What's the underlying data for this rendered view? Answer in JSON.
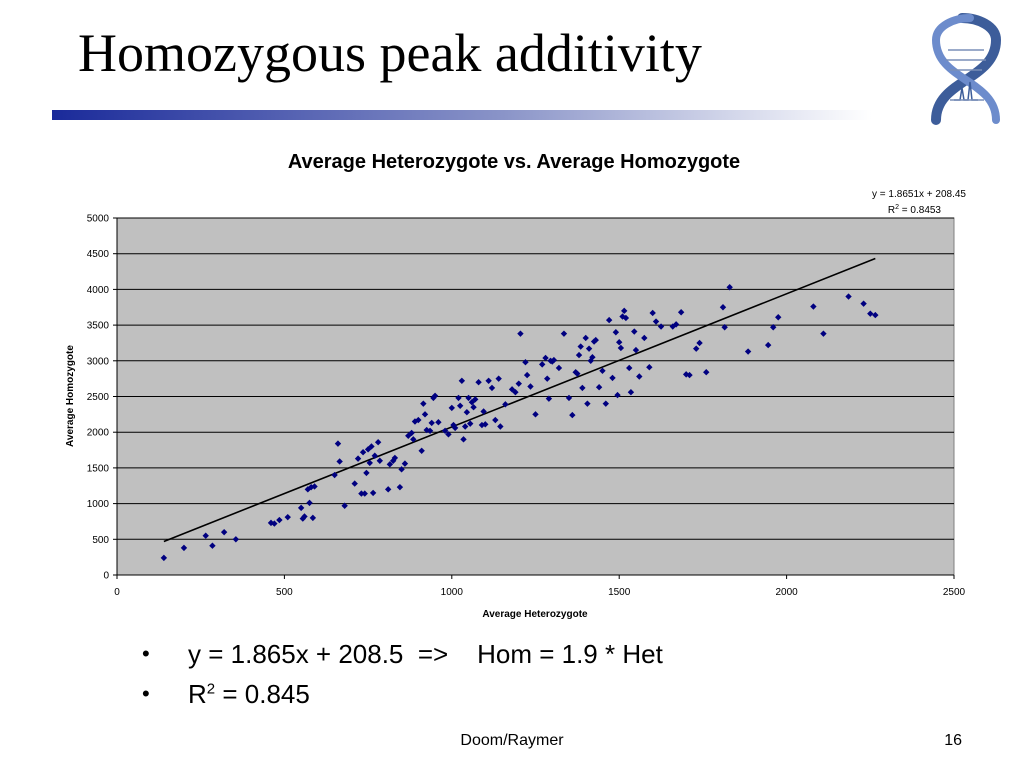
{
  "slide": {
    "title": "Homozygous peak additivity",
    "footer": "Doom/Raymer",
    "page_number": "16"
  },
  "bullets": [
    {
      "text": "y = 1.865x + 208.5  =>    Hom = 1.9 * Het"
    },
    {
      "prefix": "R",
      "sup": "2",
      "suffix": " = 0.845"
    }
  ],
  "chart_data": {
    "type": "scatter",
    "title": "Average Heterozygote vs. Average Homozygote",
    "xlabel": "Average Heterozygote",
    "ylabel": "Average Homozygote",
    "xlim": [
      0,
      2500
    ],
    "ylim": [
      0,
      5000
    ],
    "x_ticks": [
      0,
      500,
      1000,
      1500,
      2000,
      2500
    ],
    "y_ticks": [
      0,
      500,
      1000,
      1500,
      2000,
      2500,
      3000,
      3500,
      4000,
      4500,
      5000
    ],
    "grid": "horizontal",
    "plot_background": "#c0c0c0",
    "marker_color": "#000080",
    "line_color": "#000000",
    "trendline": {
      "type": "linear",
      "slope": 1.8651,
      "intercept": 208.45,
      "x_range": [
        140,
        2265
      ],
      "equation_label": "y = 1.8651x + 208.45",
      "r2_prefix": "R",
      "r2_sup": "2",
      "r2_suffix": " = 0.8453"
    },
    "points": [
      [
        140,
        240
      ],
      [
        200,
        380
      ],
      [
        265,
        550
      ],
      [
        285,
        410
      ],
      [
        320,
        600
      ],
      [
        355,
        500
      ],
      [
        460,
        730
      ],
      [
        470,
        720
      ],
      [
        485,
        770
      ],
      [
        510,
        810
      ],
      [
        550,
        940
      ],
      [
        555,
        790
      ],
      [
        560,
        820
      ],
      [
        570,
        1200
      ],
      [
        575,
        1010
      ],
      [
        580,
        1230
      ],
      [
        585,
        800
      ],
      [
        590,
        1240
      ],
      [
        650,
        1400
      ],
      [
        660,
        1840
      ],
      [
        665,
        1590
      ],
      [
        680,
        970
      ],
      [
        710,
        1280
      ],
      [
        720,
        1630
      ],
      [
        730,
        1140
      ],
      [
        740,
        1140
      ],
      [
        735,
        1720
      ],
      [
        745,
        1430
      ],
      [
        750,
        1760
      ],
      [
        755,
        1570
      ],
      [
        760,
        1800
      ],
      [
        765,
        1150
      ],
      [
        770,
        1670
      ],
      [
        780,
        1860
      ],
      [
        785,
        1600
      ],
      [
        810,
        1200
      ],
      [
        815,
        1550
      ],
      [
        825,
        1600
      ],
      [
        830,
        1640
      ],
      [
        845,
        1230
      ],
      [
        850,
        1480
      ],
      [
        860,
        1560
      ],
      [
        870,
        1950
      ],
      [
        880,
        1990
      ],
      [
        885,
        1900
      ],
      [
        890,
        2150
      ],
      [
        900,
        2170
      ],
      [
        910,
        1740
      ],
      [
        915,
        2400
      ],
      [
        920,
        2250
      ],
      [
        925,
        2030
      ],
      [
        935,
        2020
      ],
      [
        940,
        2130
      ],
      [
        945,
        2480
      ],
      [
        950,
        2510
      ],
      [
        960,
        2140
      ],
      [
        980,
        2020
      ],
      [
        990,
        1970
      ],
      [
        1000,
        2340
      ],
      [
        1005,
        2100
      ],
      [
        1010,
        2060
      ],
      [
        1020,
        2480
      ],
      [
        1025,
        2370
      ],
      [
        1030,
        2720
      ],
      [
        1035,
        1900
      ],
      [
        1040,
        2080
      ],
      [
        1045,
        2280
      ],
      [
        1050,
        2480
      ],
      [
        1055,
        2120
      ],
      [
        1060,
        2420
      ],
      [
        1065,
        2350
      ],
      [
        1070,
        2460
      ],
      [
        1080,
        2700
      ],
      [
        1090,
        2100
      ],
      [
        1095,
        2290
      ],
      [
        1100,
        2110
      ],
      [
        1110,
        2720
      ],
      [
        1120,
        2620
      ],
      [
        1130,
        2170
      ],
      [
        1140,
        2750
      ],
      [
        1145,
        2080
      ],
      [
        1160,
        2390
      ],
      [
        1180,
        2600
      ],
      [
        1190,
        2560
      ],
      [
        1200,
        2680
      ],
      [
        1205,
        3380
      ],
      [
        1220,
        2980
      ],
      [
        1225,
        2800
      ],
      [
        1235,
        2640
      ],
      [
        1250,
        2250
      ],
      [
        1270,
        2950
      ],
      [
        1280,
        3040
      ],
      [
        1285,
        2750
      ],
      [
        1290,
        2470
      ],
      [
        1295,
        3000
      ],
      [
        1300,
        2990
      ],
      [
        1305,
        3010
      ],
      [
        1320,
        2900
      ],
      [
        1335,
        3380
      ],
      [
        1350,
        2480
      ],
      [
        1360,
        2240
      ],
      [
        1370,
        2840
      ],
      [
        1375,
        2820
      ],
      [
        1380,
        3080
      ],
      [
        1385,
        3200
      ],
      [
        1390,
        2620
      ],
      [
        1400,
        3320
      ],
      [
        1405,
        2400
      ],
      [
        1410,
        3170
      ],
      [
        1415,
        3000
      ],
      [
        1420,
        3050
      ],
      [
        1425,
        3270
      ],
      [
        1430,
        3290
      ],
      [
        1440,
        2630
      ],
      [
        1450,
        2860
      ],
      [
        1460,
        2400
      ],
      [
        1470,
        3570
      ],
      [
        1480,
        2760
      ],
      [
        1490,
        3400
      ],
      [
        1495,
        2520
      ],
      [
        1500,
        3260
      ],
      [
        1505,
        3180
      ],
      [
        1510,
        3620
      ],
      [
        1515,
        3700
      ],
      [
        1520,
        3600
      ],
      [
        1530,
        2900
      ],
      [
        1535,
        2560
      ],
      [
        1545,
        3410
      ],
      [
        1550,
        3150
      ],
      [
        1560,
        2780
      ],
      [
        1575,
        3320
      ],
      [
        1590,
        2910
      ],
      [
        1600,
        3670
      ],
      [
        1610,
        3550
      ],
      [
        1625,
        3480
      ],
      [
        1660,
        3480
      ],
      [
        1670,
        3510
      ],
      [
        1685,
        3680
      ],
      [
        1700,
        2810
      ],
      [
        1710,
        2800
      ],
      [
        1730,
        3170
      ],
      [
        1740,
        3250
      ],
      [
        1760,
        2840
      ],
      [
        1810,
        3750
      ],
      [
        1815,
        3470
      ],
      [
        1830,
        4030
      ],
      [
        1885,
        3130
      ],
      [
        1945,
        3220
      ],
      [
        1960,
        3470
      ],
      [
        1975,
        3610
      ],
      [
        2080,
        3760
      ],
      [
        2110,
        3380
      ],
      [
        2185,
        3900
      ],
      [
        2230,
        3800
      ],
      [
        2250,
        3660
      ],
      [
        2265,
        3640
      ]
    ]
  }
}
